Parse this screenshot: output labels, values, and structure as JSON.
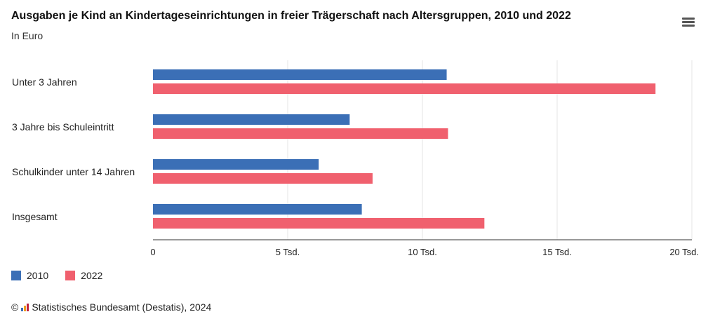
{
  "header": {
    "title": "Ausgaben je Kind an Kindertageseinrichtungen in freier Trägerschaft nach Altersgruppen, 2010 und 2022",
    "subtitle": "In Euro",
    "menu_icon": "hamburger-menu-icon"
  },
  "colors": {
    "series_2010": "#3b6fb6",
    "series_2022": "#f0606e",
    "grid": "#e6e6e6",
    "axis": "#333333"
  },
  "chart_data": {
    "type": "bar",
    "orientation": "horizontal",
    "title": "Ausgaben je Kind an Kindertageseinrichtungen in freier Trägerschaft nach Altersgruppen, 2010 und 2022",
    "subtitle": "In Euro",
    "categories": [
      "Unter 3 Jahren",
      "3 Jahre bis Schuleintritt",
      "Schulkinder unter 14 Jahren",
      "Insgesamt"
    ],
    "series": [
      {
        "name": "2010",
        "values": [
          10900,
          7300,
          6150,
          7750
        ]
      },
      {
        "name": "2022",
        "values": [
          18650,
          10950,
          8150,
          12300
        ]
      }
    ],
    "xlim": [
      0,
      20000
    ],
    "ticks": [
      0,
      5000,
      10000,
      15000,
      20000
    ],
    "tick_labels": [
      "0",
      "5 Tsd.",
      "10 Tsd.",
      "15 Tsd.",
      "20 Tsd."
    ],
    "grid": true,
    "legend": "bottom-left"
  },
  "legend": {
    "items": [
      "2010",
      "2022"
    ]
  },
  "footer": {
    "copyright": "©",
    "source": "Statistisches Bundesamt (Destatis), 2024"
  }
}
